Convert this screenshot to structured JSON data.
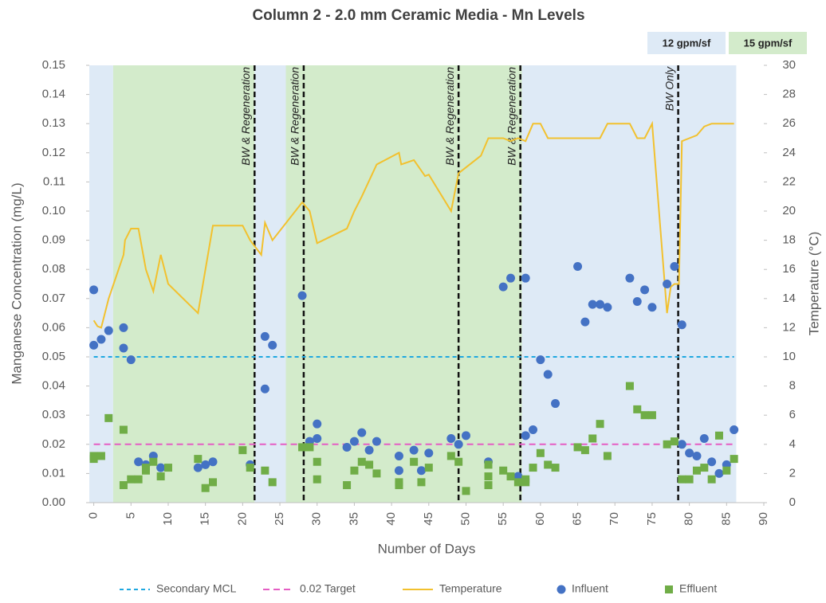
{
  "chart_data": {
    "type": "mixed",
    "title": "Column 2 - 2.0 mm Ceramic Media - Mn Levels",
    "x_label": "Number of Days",
    "y_label": "Manganese Concentration (mg/L)",
    "y2_label": "Temperature (°C)",
    "xlim": [
      -0.6,
      90
    ],
    "ylim": [
      0,
      0.15
    ],
    "y2lim": [
      0,
      30
    ],
    "xticks": [
      0,
      5,
      10,
      15,
      20,
      25,
      30,
      35,
      40,
      45,
      50,
      55,
      60,
      65,
      70,
      75,
      80,
      85,
      90
    ],
    "yticks": [
      {
        "value": 0,
        "label": "0.00"
      },
      {
        "value": 0.01,
        "label": "0.01"
      },
      {
        "value": 0.02,
        "label": "0.02"
      },
      {
        "value": 0.03,
        "label": "0.03"
      },
      {
        "value": 0.04,
        "label": "0.04"
      },
      {
        "value": 0.05,
        "label": "0.05"
      },
      {
        "value": 0.06,
        "label": "0.06"
      },
      {
        "value": 0.07,
        "label": "0.07"
      },
      {
        "value": 0.08,
        "label": "0.08"
      },
      {
        "value": 0.09,
        "label": "0.09"
      },
      {
        "value": 0.1,
        "label": "0.10"
      },
      {
        "value": 0.11,
        "label": "0.11"
      },
      {
        "value": 0.12,
        "label": "0.12"
      },
      {
        "value": 0.13,
        "label": "0.13"
      },
      {
        "value": 0.14,
        "label": "0.14"
      },
      {
        "value": 0.15,
        "label": "0.15"
      }
    ],
    "y2ticks": [
      0,
      2,
      4,
      6,
      8,
      10,
      12,
      14,
      16,
      18,
      20,
      22,
      24,
      26,
      28,
      30
    ],
    "flow_rates": [
      {
        "label": "12 gpm/sf",
        "color": "#deeaf6"
      },
      {
        "label": "15 gpm/sf",
        "color": "#d3ebcb"
      }
    ],
    "regions": [
      {
        "start": -0.6,
        "end": 2.6,
        "color": "#deeaf6"
      },
      {
        "start": 2.6,
        "end": 21.6,
        "color": "#d3ebcb"
      },
      {
        "start": 21.6,
        "end": 25.8,
        "color": "#deeaf6"
      },
      {
        "start": 25.8,
        "end": 57.5,
        "color": "#d3ebcb"
      },
      {
        "start": 57.5,
        "end": 86.3,
        "color": "#deeaf6"
      }
    ],
    "events": [
      {
        "x": 21.6,
        "label": "BW & Regeneration"
      },
      {
        "x": 28.2,
        "label": "BW & Regeneration"
      },
      {
        "x": 49,
        "label": "BW & Regeneration"
      },
      {
        "x": 57.3,
        "label": "BW & Regeneration"
      },
      {
        "x": 78.5,
        "label": "BW Only"
      }
    ],
    "series": [
      {
        "name": "Secondary MCL",
        "type": "line",
        "dash": "5,4",
        "color": "#1fa8e0",
        "x": [
          0,
          86
        ],
        "values": [
          0.05,
          0.05
        ]
      },
      {
        "name": "0.02 Target",
        "type": "line",
        "dash": "8,5",
        "color": "#e55ec4",
        "x": [
          0,
          86
        ],
        "values": [
          0.02,
          0.02
        ]
      },
      {
        "name": "Temperature",
        "type": "line",
        "axis": "y2",
        "color": "#f2c12e",
        "x": [
          0,
          0.5,
          1,
          2,
          4,
          4.2,
          5,
          6,
          7,
          8,
          9,
          10,
          14,
          16,
          20,
          21,
          22.5,
          23,
          24,
          28,
          29,
          30,
          34,
          35,
          36,
          38,
          41,
          41.3,
          43,
          44.5,
          45,
          48,
          49,
          52,
          53,
          55,
          56,
          57,
          58,
          59,
          60,
          61,
          66,
          67,
          68,
          69,
          72,
          73,
          74,
          75,
          77,
          77.5,
          78,
          78.6,
          79,
          80,
          81,
          82,
          83,
          86
        ],
        "values": [
          12.5,
          12.1,
          12,
          14,
          17,
          18,
          18.8,
          18.8,
          16,
          14.5,
          17,
          15,
          13,
          19,
          19,
          18,
          17,
          19.2,
          18,
          20.6,
          20,
          17.8,
          18.8,
          20,
          21,
          23.2,
          24,
          23.2,
          23.5,
          22.4,
          22.5,
          20,
          22.6,
          23.8,
          25,
          25,
          24.8,
          25,
          24.8,
          26,
          26,
          25,
          25,
          25,
          25,
          26,
          26,
          25,
          25,
          26,
          13,
          14.8,
          15,
          15,
          24.8,
          25,
          25.2,
          25.8,
          26,
          26
        ]
      },
      {
        "name": "Influent",
        "type": "scatter",
        "marker": "circle",
        "color": "#4472c4",
        "x": [
          0,
          0,
          1,
          2,
          4,
          4,
          5,
          6,
          7,
          8,
          9,
          14,
          15,
          16,
          21,
          23,
          23,
          24,
          28,
          29,
          30,
          30,
          34,
          35,
          36,
          37,
          38,
          41,
          41,
          43,
          44,
          45,
          48,
          49,
          50,
          53,
          55,
          56,
          57,
          58,
          58,
          59,
          60,
          61,
          62,
          65,
          66,
          67,
          68,
          69,
          72,
          73,
          74,
          75,
          77,
          78,
          79,
          79,
          80,
          81,
          82,
          83,
          84,
          85,
          86
        ],
        "values": [
          0.054,
          0.073,
          0.056,
          0.059,
          0.06,
          0.053,
          0.049,
          0.014,
          0.013,
          0.016,
          0.012,
          0.012,
          0.013,
          0.014,
          0.013,
          0.057,
          0.039,
          0.054,
          0.071,
          0.021,
          0.022,
          0.027,
          0.019,
          0.021,
          0.024,
          0.018,
          0.021,
          0.016,
          0.011,
          0.018,
          0.011,
          0.017,
          0.022,
          0.02,
          0.023,
          0.014,
          0.074,
          0.077,
          0.009,
          0.023,
          0.077,
          0.025,
          0.049,
          0.044,
          0.034,
          0.081,
          0.062,
          0.068,
          0.068,
          0.067,
          0.077,
          0.069,
          0.073,
          0.067,
          0.075,
          0.081,
          0.061,
          0.02,
          0.017,
          0.016,
          0.022,
          0.014,
          0.01,
          0.013,
          0.025
        ]
      },
      {
        "name": "Effluent",
        "type": "scatter",
        "marker": "square",
        "color": "#70ad47",
        "x": [
          0,
          0,
          1,
          2,
          4,
          4,
          5,
          6,
          7,
          7,
          8,
          9,
          10,
          14,
          15,
          16,
          20,
          21,
          23,
          24,
          28,
          29,
          30,
          30,
          34,
          35,
          36,
          37,
          38,
          41,
          41,
          43,
          44,
          45,
          48,
          49,
          50,
          53,
          53,
          53,
          55,
          56,
          57,
          58,
          58,
          59,
          60,
          61,
          62,
          65,
          66,
          67,
          68,
          69,
          72,
          73,
          74,
          75,
          77,
          78,
          79,
          80,
          81,
          82,
          83,
          84,
          85,
          86
        ],
        "values": [
          0.015,
          0.016,
          0.016,
          0.029,
          0.025,
          0.006,
          0.008,
          0.008,
          0.011,
          0.012,
          0.014,
          0.009,
          0.012,
          0.015,
          0.005,
          0.007,
          0.018,
          0.012,
          0.011,
          0.007,
          0.019,
          0.019,
          0.014,
          0.008,
          0.006,
          0.011,
          0.014,
          0.013,
          0.01,
          0.007,
          0.006,
          0.014,
          0.007,
          0.012,
          0.016,
          0.014,
          0.004,
          0.013,
          0.009,
          0.006,
          0.011,
          0.009,
          0.007,
          0.008,
          0.007,
          0.012,
          0.017,
          0.013,
          0.012,
          0.019,
          0.018,
          0.022,
          0.027,
          0.016,
          0.04,
          0.032,
          0.03,
          0.03,
          0.02,
          0.021,
          0.008,
          0.008,
          0.011,
          0.012,
          0.008,
          0.023,
          0.011,
          0.015
        ]
      }
    ]
  }
}
